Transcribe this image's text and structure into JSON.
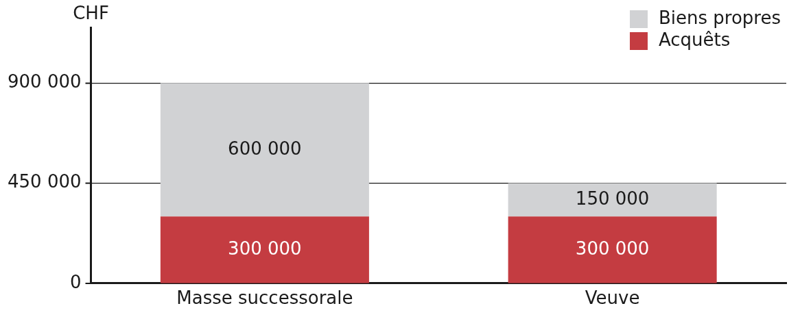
{
  "chart_data": {
    "type": "bar",
    "ylabel": "CHF",
    "categories": [
      "Masse successorale",
      "Veuve"
    ],
    "stacked": true,
    "series": [
      {
        "name": "Acquêts",
        "color": "#c43c41",
        "values": [
          300000,
          300000
        ],
        "value_labels": [
          "300 000",
          "300 000"
        ]
      },
      {
        "name": "Biens propres",
        "color": "#d1d2d4",
        "values": [
          600000,
          150000
        ],
        "value_labels": [
          "600 000",
          "150 000"
        ]
      }
    ],
    "ylim": [
      0,
      1150000
    ],
    "yticks": [
      {
        "value": 0,
        "label": "0"
      },
      {
        "value": 450000,
        "label": "450 000"
      },
      {
        "value": 900000,
        "label": "900 000"
      }
    ],
    "grid": "y",
    "legend": "top right"
  }
}
